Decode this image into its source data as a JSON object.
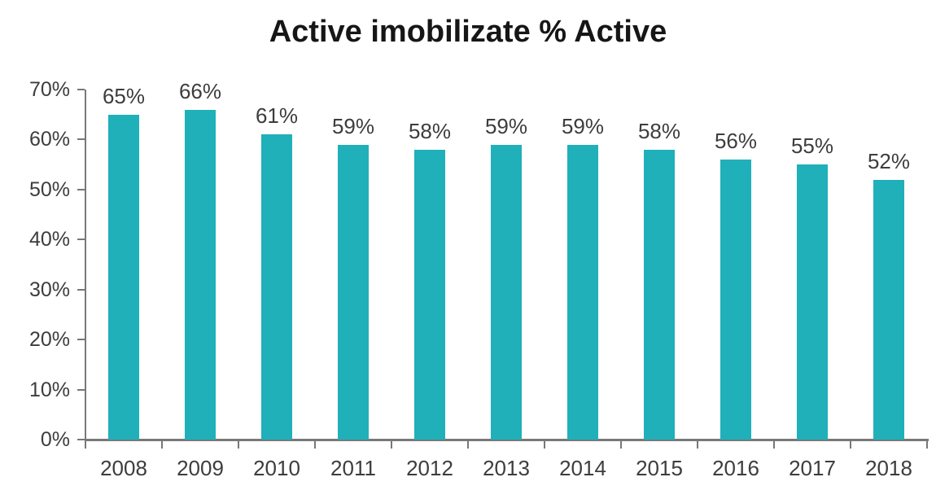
{
  "chart_data": {
    "type": "bar",
    "title": "Active imobilizate % Active",
    "categories": [
      "2008",
      "2009",
      "2010",
      "2011",
      "2012",
      "2013",
      "2014",
      "2015",
      "2016",
      "2017",
      "2018"
    ],
    "values": [
      65,
      66,
      61,
      59,
      58,
      59,
      59,
      58,
      56,
      55,
      52
    ],
    "data_labels": [
      "65%",
      "66%",
      "61%",
      "59%",
      "58%",
      "59%",
      "59%",
      "58%",
      "56%",
      "55%",
      "52%"
    ],
    "ytick_labels": [
      "0%",
      "10%",
      "20%",
      "30%",
      "40%",
      "50%",
      "60%",
      "70%"
    ],
    "ytick_values": [
      0,
      10,
      20,
      30,
      40,
      50,
      60,
      70
    ],
    "ylim": [
      0,
      70
    ],
    "ytick_step": 10,
    "xlabel": "",
    "ylabel": "",
    "grid": false,
    "legend": false,
    "colors": {
      "bar": "#1FB0BA",
      "axis": "#787878",
      "tick_text": "#3D3D3D",
      "title_text": "#161616",
      "background": "#FFFFFF"
    }
  }
}
